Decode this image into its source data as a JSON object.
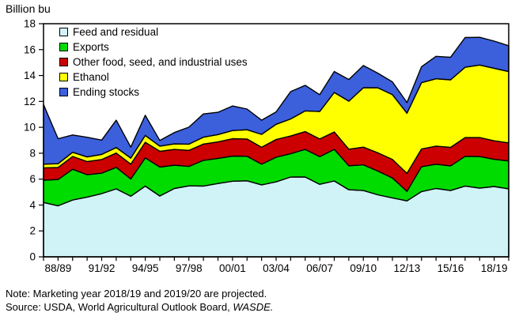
{
  "note": "Note: Marketing year 2018/19 and 2019/20 are projected.",
  "source_prefix": "Source: USDA, World Agricultural Outlook Board, ",
  "source_italic": "WASDE.",
  "legend": {
    "items": [
      {
        "label": "Feed and residual",
        "color": "#CFF3F7"
      },
      {
        "label": "Exports",
        "color": "#00DC00"
      },
      {
        "label": "Other food, seed, and industrial uses",
        "color": "#CC0000"
      },
      {
        "label": "Ethanol",
        "color": "#FFFF00"
      },
      {
        "label": "Ending stocks",
        "color": "#3C5FDC"
      }
    ]
  },
  "chart_data": {
    "type": "area",
    "stacked": true,
    "title": "Billion bu",
    "ylabel": "Billion bu",
    "ylim": [
      0,
      18
    ],
    "y_ticks": [
      0,
      2,
      4,
      6,
      8,
      10,
      12,
      14,
      16,
      18
    ],
    "grid": false,
    "legend_position": "top-left-inside",
    "x_categories": [
      "87/88",
      "88/89",
      "89/90",
      "90/91",
      "91/92",
      "92/93",
      "93/94",
      "94/95",
      "95/96",
      "96/97",
      "97/98",
      "98/99",
      "99/00",
      "00/01",
      "01/02",
      "02/03",
      "03/04",
      "04/05",
      "05/06",
      "06/07",
      "07/08",
      "08/09",
      "09/10",
      "10/11",
      "11/12",
      "12/13",
      "13/14",
      "14/15",
      "15/16",
      "16/17",
      "17/18",
      "18/19",
      "19/20"
    ],
    "x_tick_labels": [
      "88/89",
      "91/92",
      "94/95",
      "97/98",
      "00/01",
      "03/04",
      "06/07",
      "09/10",
      "12/13",
      "15/16",
      "18/19"
    ],
    "x_tick_label_indices": [
      1,
      4,
      7,
      10,
      13,
      16,
      19,
      22,
      25,
      28,
      31
    ],
    "series": [
      {
        "name": "Feed and residual",
        "color": "#CFF3F7",
        "values": [
          4.2,
          3.94,
          4.39,
          4.61,
          4.88,
          5.25,
          4.68,
          5.46,
          4.7,
          5.28,
          5.48,
          5.47,
          5.66,
          5.84,
          5.87,
          5.56,
          5.79,
          6.16,
          6.16,
          5.6,
          5.86,
          5.18,
          5.12,
          4.79,
          4.55,
          4.32,
          5.04,
          5.28,
          5.12,
          5.47,
          5.3,
          5.43,
          5.25
        ]
      },
      {
        "name": "Exports",
        "color": "#00DC00",
        "values": [
          1.72,
          2.03,
          2.37,
          1.73,
          1.58,
          1.66,
          1.33,
          2.18,
          2.23,
          1.8,
          1.5,
          1.98,
          1.94,
          1.94,
          1.9,
          1.59,
          1.9,
          1.81,
          2.13,
          2.13,
          2.44,
          1.85,
          1.98,
          1.83,
          1.54,
          0.73,
          1.92,
          1.87,
          1.9,
          2.29,
          2.44,
          2.1,
          2.15
        ]
      },
      {
        "name": "Other food, seed, and industrial uses",
        "color": "#CC0000",
        "values": [
          0.95,
          0.93,
          0.99,
          1.02,
          1.05,
          1.1,
          1.15,
          1.2,
          1.22,
          1.21,
          1.24,
          1.26,
          1.27,
          1.34,
          1.33,
          1.31,
          1.37,
          1.36,
          1.38,
          1.37,
          1.34,
          1.28,
          1.37,
          1.41,
          1.43,
          1.4,
          1.37,
          1.4,
          1.43,
          1.45,
          1.47,
          1.43,
          1.4
        ]
      },
      {
        "name": "Ethanol",
        "color": "#FFFF00",
        "values": [
          0.29,
          0.29,
          0.32,
          0.35,
          0.4,
          0.43,
          0.46,
          0.53,
          0.4,
          0.43,
          0.48,
          0.53,
          0.57,
          0.63,
          0.71,
          1.0,
          1.17,
          1.32,
          1.6,
          2.12,
          3.05,
          3.71,
          4.59,
          5.02,
          5.0,
          4.64,
          5.12,
          5.2,
          5.22,
          5.43,
          5.6,
          5.6,
          5.5
        ]
      },
      {
        "name": "Ending stocks",
        "color": "#3C5FDC",
        "values": [
          4.6,
          1.93,
          1.34,
          1.52,
          1.1,
          2.11,
          0.85,
          1.56,
          0.43,
          0.88,
          1.31,
          1.79,
          1.72,
          1.9,
          1.6,
          1.09,
          0.96,
          2.11,
          1.97,
          1.3,
          1.62,
          1.67,
          1.71,
          1.13,
          0.99,
          0.82,
          1.23,
          1.73,
          1.74,
          2.29,
          2.14,
          2.1,
          2.0
        ]
      }
    ]
  }
}
